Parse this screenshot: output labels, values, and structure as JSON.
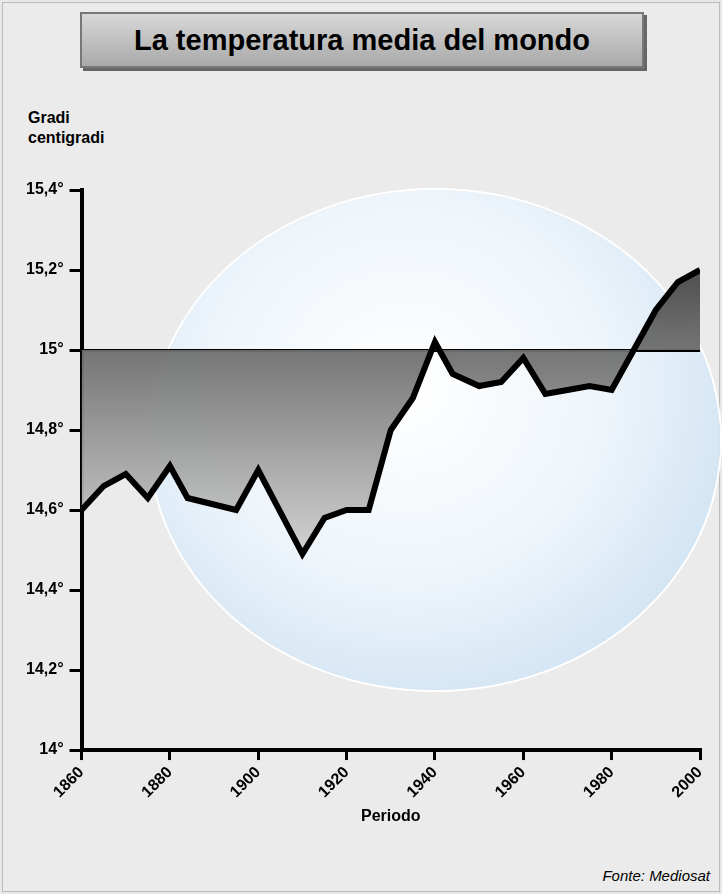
{
  "chart_data": {
    "type": "line",
    "title": "La temperatura media del mondo",
    "y_label": "Gradi centigradi",
    "x_label": "Periodo",
    "source": "Fonte: Mediosat",
    "x": [
      1860,
      1865,
      1870,
      1875,
      1880,
      1884,
      1895,
      1900,
      1910,
      1915,
      1920,
      1925,
      1930,
      1935,
      1940,
      1944,
      1950,
      1955,
      1960,
      1965,
      1970,
      1975,
      1980,
      1985,
      1990,
      1995,
      2000
    ],
    "values": [
      14.6,
      14.66,
      14.69,
      14.63,
      14.71,
      14.63,
      14.6,
      14.7,
      14.49,
      14.58,
      14.6,
      14.6,
      14.8,
      14.88,
      15.02,
      14.94,
      14.91,
      14.92,
      14.98,
      14.89,
      14.9,
      14.91,
      14.9,
      15.0,
      15.1,
      15.17,
      15.2
    ],
    "baseline": 15,
    "color": "#000000",
    "xlim": [
      1860,
      2000
    ],
    "xticks": [
      1860,
      1880,
      1900,
      1920,
      1940,
      1960,
      1980,
      2000
    ],
    "ylim": [
      14,
      15.4
    ],
    "yticks": [
      {
        "value": 14,
        "label": "14°"
      },
      {
        "value": 14.2,
        "label": "14,2°"
      },
      {
        "value": 14.4,
        "label": "14,4°"
      },
      {
        "value": 14.6,
        "label": "14,6°"
      },
      {
        "value": 14.8,
        "label": "14,8°"
      },
      {
        "value": 15,
        "label": "15°"
      },
      {
        "value": 15.2,
        "label": "15,2°"
      },
      {
        "value": 15.4,
        "label": "15,4°"
      }
    ],
    "grid": false
  }
}
